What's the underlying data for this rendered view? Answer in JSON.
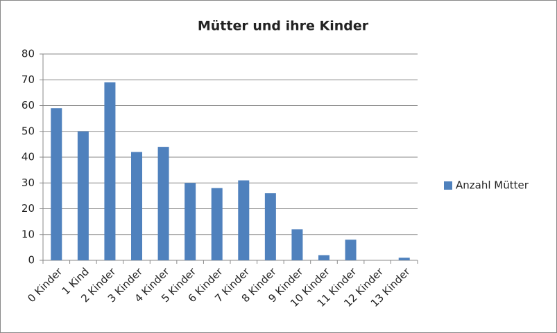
{
  "chart_data": {
    "type": "bar",
    "title": "Mütter und ihre Kinder",
    "categories": [
      "0 Kinder",
      "1 Kind",
      "2 Kinder",
      "3 Kinder",
      "4 Kinder",
      "5 Kinder",
      "6 Kinder",
      "7 Kinder",
      "8 Kinder",
      "9 Kinder",
      "10 Kinder",
      "11 Kinder",
      "12 Kinder",
      "13 Kinder"
    ],
    "series": [
      {
        "name": "Anzahl Mütter",
        "color": "#4f81bd",
        "values": [
          59,
          50,
          69,
          42,
          44,
          30,
          28,
          31,
          26,
          12,
          2,
          8,
          0,
          1
        ]
      }
    ],
    "ylim": [
      0,
      80
    ],
    "yticks": [
      0,
      10,
      20,
      30,
      40,
      50,
      60,
      70,
      80
    ],
    "grid": true,
    "legend": "right"
  }
}
